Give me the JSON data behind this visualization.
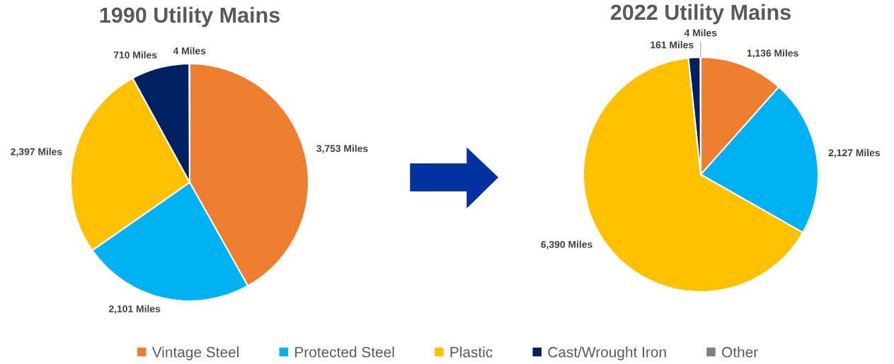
{
  "chart_data": [
    {
      "type": "pie",
      "title": "1990 Utility Mains",
      "categories": [
        "Vintage Steel",
        "Protected Steel",
        "Plastic",
        "Cast/Wrought Iron",
        "Other"
      ],
      "values": [
        3753,
        2101,
        2397,
        710,
        4
      ],
      "colors": [
        "#ed7d31",
        "#00b0f0",
        "#ffc000",
        "#002060",
        "#808080"
      ],
      "value_labels": [
        "3,753 Miles",
        "2,101 Miles",
        "2,397 Miles",
        "710 Miles",
        "4 Miles"
      ],
      "legend": "bottom"
    },
    {
      "type": "pie",
      "title": "2022 Utility Mains",
      "categories": [
        null,
        null,
        null,
        null,
        null
      ],
      "values": [
        1136,
        2127,
        6390,
        161,
        4
      ],
      "colors": [
        "#ed7d31",
        "#00b0f0",
        "#ffc000",
        "#002060",
        "#808080"
      ],
      "value_labels": [
        "1,136 Miles",
        "2,127 Miles",
        "6,390 Miles",
        "161 Miles",
        "4 Miles"
      ]
    }
  ]
}
